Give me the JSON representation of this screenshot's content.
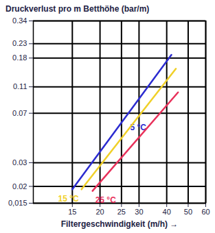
{
  "chart_data": {
    "type": "line",
    "title": "Druckverlust pro m Betthöhe (bar/m)",
    "x_label": "Filtergeschwindigkeit (m/h)",
    "log": true,
    "grid": true,
    "xlim": [
      10,
      60
    ],
    "xticks": [
      15,
      20,
      25,
      30,
      40,
      50,
      60
    ],
    "ylim": [
      0.015,
      0.34
    ],
    "yticks": [
      {
        "value": 0.015,
        "label": "0,015"
      },
      0.02,
      0.03,
      0.07,
      0.11,
      0.18,
      0.23,
      0.34
    ],
    "series": [
      {
        "name": "5 °C",
        "color": "#2b2bd0",
        "x": [
          15,
          42
        ],
        "values": [
          0.019,
          0.19
        ]
      },
      {
        "name": "15 °C",
        "color": "#f0d028",
        "x": [
          16.5,
          44
        ],
        "values": [
          0.019,
          0.15
        ]
      },
      {
        "name": "25 °C",
        "color": "#e8305a",
        "x": [
          18.5,
          45
        ],
        "values": [
          0.0185,
          0.1
        ]
      }
    ]
  }
}
